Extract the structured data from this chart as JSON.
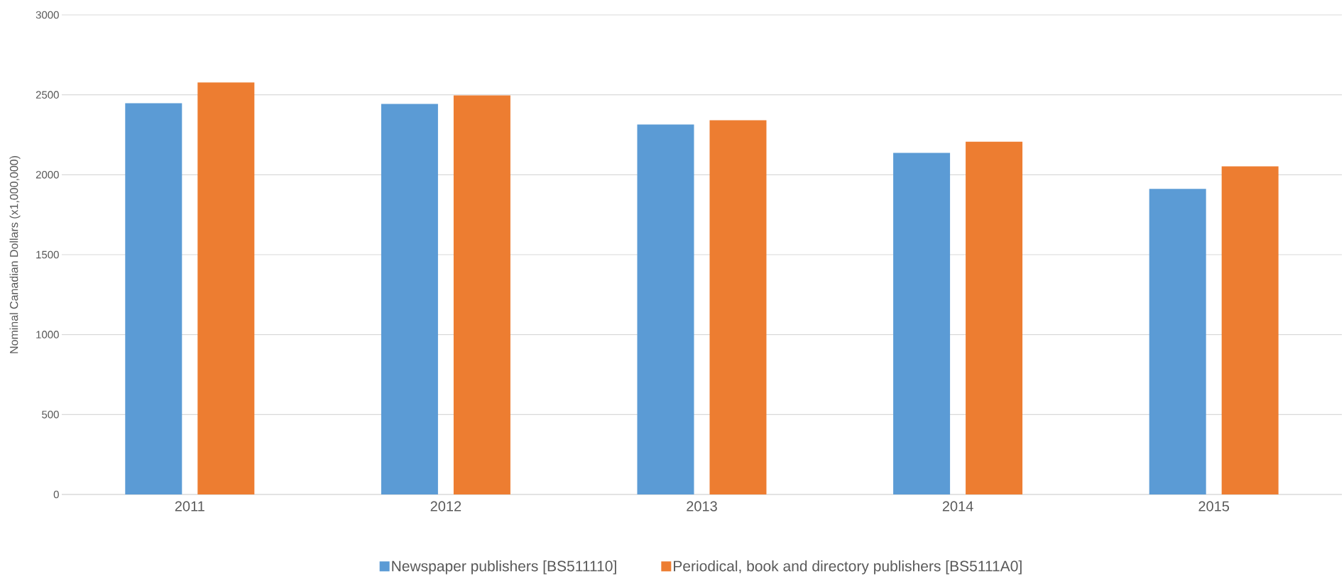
{
  "chart_data": {
    "type": "bar",
    "ylabel": "Nominal Canadian Dollars (x1,000,000)",
    "categories": [
      "2011",
      "2012",
      "2013",
      "2014",
      "2015"
    ],
    "series": [
      {
        "name": "Newspaper publishers [BS511110]",
        "color": "#5b9bd5",
        "values": [
          2448,
          2443,
          2314,
          2137,
          1912
        ]
      },
      {
        "name": "Periodical, book and directory publishers [BS5111A0]",
        "color": "#ed7d31",
        "values": [
          2577,
          2496,
          2341,
          2207,
          2052
        ]
      }
    ],
    "ylim": [
      0,
      3000
    ],
    "yticks": [
      0,
      500,
      1000,
      1500,
      2000,
      2500,
      3000
    ],
    "grid": "y",
    "legend": "bottom"
  }
}
